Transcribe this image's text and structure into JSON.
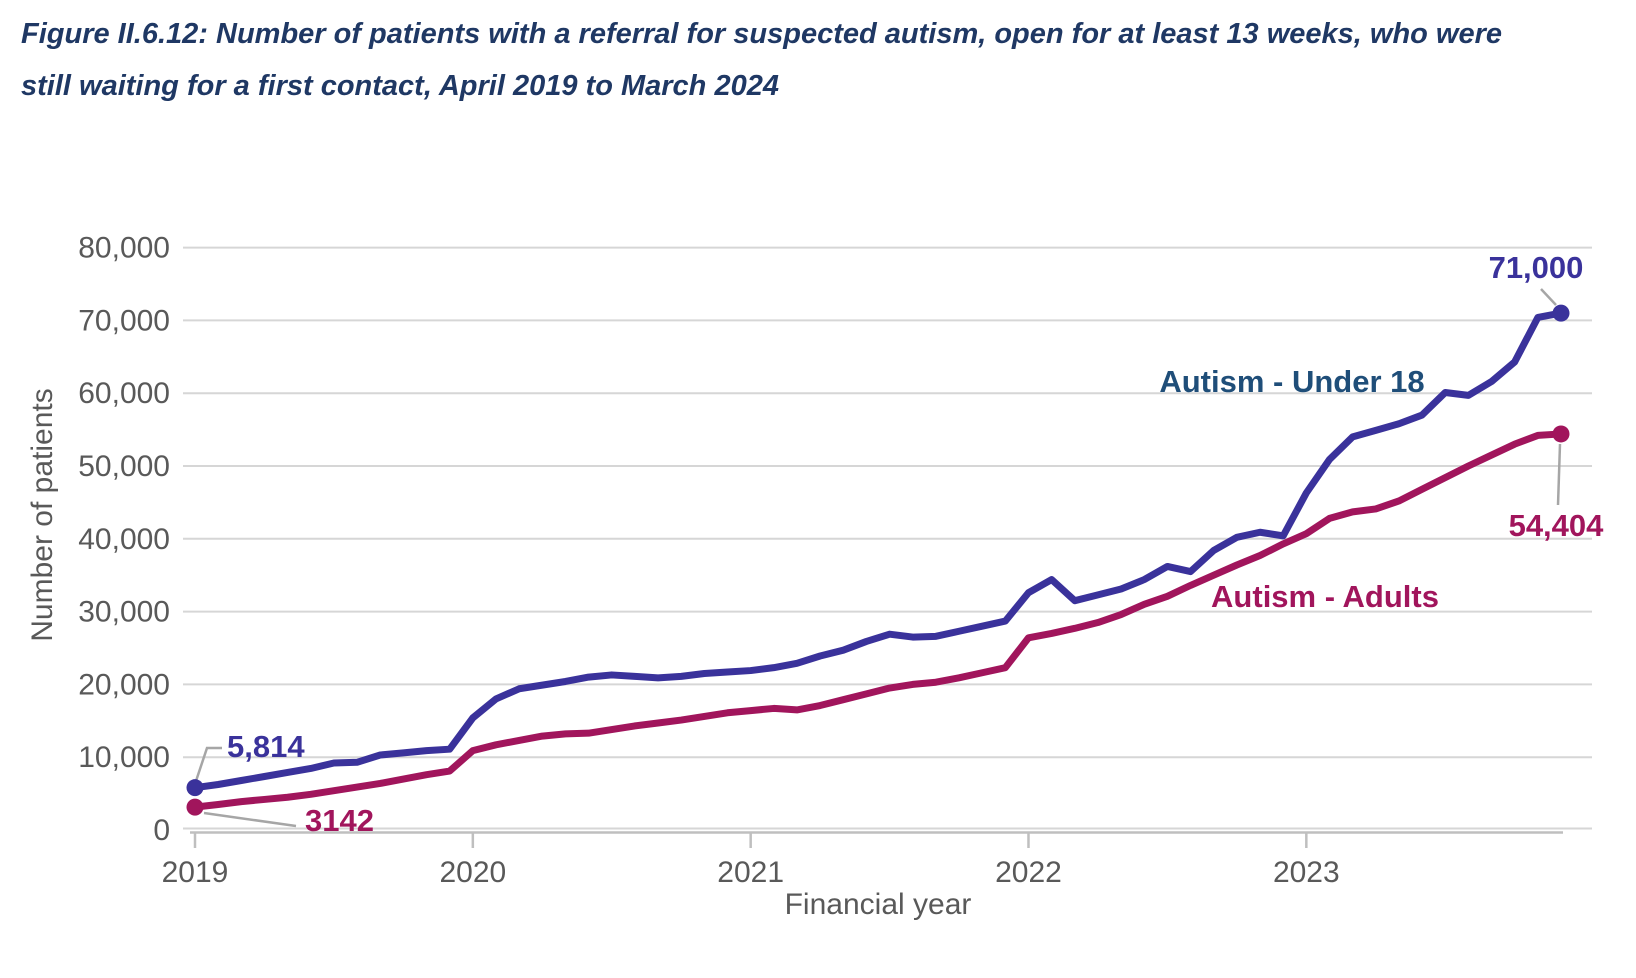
{
  "title": "Figure II.6.12: Number of patients with a referral for suspected autism, open for at least 13 weeks, who were still waiting for a first contact, April 2019 to March 2024",
  "colors": {
    "title_text": "#1F3864",
    "axis_text": "#595959",
    "gridline": "#D6D6D6",
    "axis_line": "#BFBFBF",
    "leader_line": "#A6A6A6",
    "background": "#FFFFFF"
  },
  "chart_data": {
    "type": "line",
    "title": "Figure II.6.12: Number of patients with a referral for suspected autism, open for at least 13 weeks, who were still waiting for a first contact, April 2019 to March 2024",
    "xlabel": "Financial year",
    "ylabel": "Number of patients",
    "x_frequency": "monthly",
    "x_start": "April 2019",
    "x_end": "March 2024",
    "x_tick_labels": [
      "2019",
      "2020",
      "2021",
      "2022",
      "2023"
    ],
    "x_tick_month_index": [
      0,
      12,
      24,
      36,
      48
    ],
    "y_ticks": [
      0,
      10000,
      20000,
      30000,
      40000,
      50000,
      60000,
      70000,
      80000
    ],
    "ylim": [
      0,
      80000
    ],
    "grid": "horizontal",
    "legend_position": "inline-labels",
    "series": [
      {
        "name": "Autism - Under 18",
        "color": "#3A329B",
        "label_color": "#1F4E79",
        "first_label": "5,814",
        "last_label": "71,000",
        "values": [
          5814,
          6250,
          6800,
          7350,
          7900,
          8450,
          9200,
          9300,
          10300,
          10600,
          10900,
          11100,
          15400,
          18000,
          19400,
          19900,
          20400,
          21000,
          21300,
          21100,
          20900,
          21100,
          21500,
          21700,
          21900,
          22300,
          22900,
          23900,
          24700,
          25900,
          26900,
          26500,
          26600,
          27300,
          28000,
          28700,
          32600,
          34400,
          31500,
          32300,
          33100,
          34400,
          36200,
          35500,
          38400,
          40200,
          40900,
          40400,
          46300,
          50900,
          54000,
          54900,
          55800,
          57000,
          60100,
          59700,
          61600,
          64300,
          70400,
          71000
        ]
      },
      {
        "name": "Autism - Adults",
        "color": "#A1155C",
        "label_color": "#A1155C",
        "first_label": "3142",
        "last_label": "54,404",
        "values": [
          3142,
          3500,
          3900,
          4200,
          4500,
          4900,
          5400,
          5900,
          6400,
          7000,
          7600,
          8100,
          10900,
          11700,
          12300,
          12900,
          13200,
          13300,
          13800,
          14300,
          14700,
          15100,
          15600,
          16100,
          16400,
          16700,
          16500,
          17100,
          17900,
          18700,
          19500,
          20000,
          20300,
          20900,
          21600,
          22300,
          26400,
          27000,
          27700,
          28500,
          29600,
          31000,
          32100,
          33600,
          35000,
          36400,
          37700,
          39300,
          40700,
          42800,
          43700,
          44100,
          45200,
          46800,
          48400,
          50000,
          51500,
          53000,
          54200,
          54404
        ]
      }
    ]
  }
}
